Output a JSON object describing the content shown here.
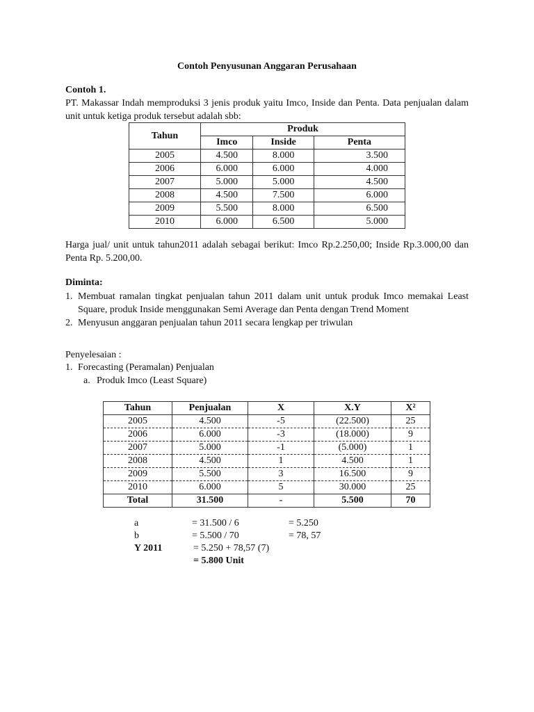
{
  "title": "Contoh Penyusunan Anggaran Perusahaan",
  "example_heading": "Contoh 1.",
  "intro": "PT. Makassar Indah memproduksi 3 jenis produk yaitu Imco, Inside dan Penta. Data penjualan dalam unit untuk ketiga produk tersebut adalah sbb:",
  "table1": {
    "year_header": "Tahun",
    "group_header": "Produk",
    "columns": [
      "Imco",
      "Inside",
      "Penta"
    ],
    "rows": [
      [
        "2005",
        "4.500",
        "8.000",
        "3.500"
      ],
      [
        "2006",
        "6.000",
        "6.000",
        "4.000"
      ],
      [
        "2007",
        "5.000",
        "5.000",
        "4.500"
      ],
      [
        "2008",
        "4.500",
        "7.500",
        "6.000"
      ],
      [
        "2009",
        "5.500",
        "8.000",
        "6.500"
      ],
      [
        "2010",
        "6.000",
        "6.500",
        "5.000"
      ]
    ]
  },
  "price_text": "Harga jual/ unit untuk tahun2011 adalah sebagai berikut: Imco Rp.2.250,00; Inside Rp.3.000,00 dan Penta Rp. 5.200,00.",
  "requested_heading": "Diminta:",
  "requested_items": [
    {
      "num": "1.",
      "text": "Membuat ramalan tingkat penjualan tahun 2011 dalam unit untuk produk Imco memakai Least Square, produk Inside menggunakan Semi Average dan Penta dengan Trend Moment"
    },
    {
      "num": "2.",
      "text": "Menyusun anggaran penjualan tahun 2011 secara lengkap per triwulan"
    }
  ],
  "solution_heading": "Penyelesaian :",
  "solution_item": {
    "num": "1.",
    "text": "Forecasting (Peramalan) Penjualan"
  },
  "solution_sub": {
    "num": "a.",
    "text": "Produk Imco (Least Square)"
  },
  "table2": {
    "headers": [
      "Tahun",
      "Penjualan",
      "X",
      "X.Y",
      "X²"
    ],
    "rows": [
      [
        "2005",
        "4.500",
        "-5",
        "(22.500)",
        "25"
      ],
      [
        "2006",
        "6.000",
        "-3",
        "(18.000)",
        "9"
      ],
      [
        "2007",
        "5.000",
        "-1",
        "(5.000)",
        "1"
      ],
      [
        "2008",
        "4.500",
        "1",
        "4.500",
        "1"
      ],
      [
        "2009",
        "5.500",
        "3",
        "16.500",
        "9"
      ],
      [
        "2010",
        "6.000",
        "5",
        "30.000",
        "25"
      ]
    ],
    "total": [
      "Total",
      "31.500",
      "-",
      "5.500",
      "70"
    ]
  },
  "formulas": {
    "a_label": "a",
    "a_expr": "= 31.500 / 6",
    "a_result": "= 5.250",
    "b_label": "b",
    "b_expr": "= 5.500 / 70",
    "b_result": "= 78, 57",
    "y_label": "Y 2011",
    "y_expr": "= 5.250 + 78,57 (7)",
    "y_result": "= 5.800 Unit"
  }
}
